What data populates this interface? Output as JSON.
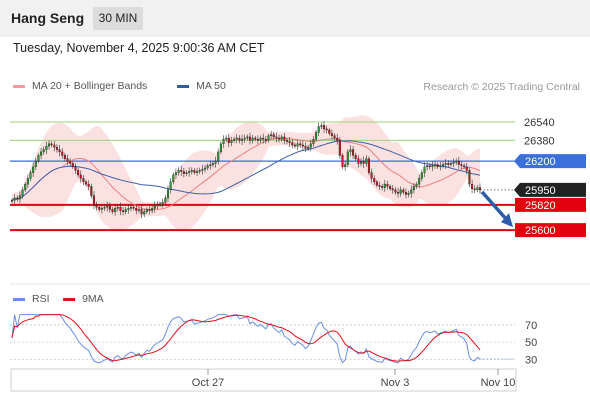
{
  "header": {
    "title": "Hang Seng",
    "interval": "30 MIN",
    "datetime": "Tuesday, November 4, 2025 9:00:36 AM CET"
  },
  "colors": {
    "candle_up": "#2ca02c",
    "candle_down": "#d9101a",
    "ma20": "#ef8080",
    "ma50": "#3f5fa8",
    "bollinger_fill": "#fbdada",
    "resistance": "#9cd47a",
    "pivot": "#3a6fdc",
    "support": "#e3000f",
    "price_label": "#222222",
    "rsi": "#6b8ee6",
    "rsi_ma": "#e0101a",
    "arrow": "#2f5ca8"
  },
  "chart_data": [
    {
      "type": "candlestick",
      "title": "",
      "legend": [
        {
          "name": "MA 20 + Bollinger Bands",
          "color": "#f19a9a"
        },
        {
          "name": "MA 50",
          "color": "#2e5fa5"
        }
      ],
      "legend_position": "top-left",
      "watermark": "Research © 2025 Trading Central",
      "ylim": [
        25150,
        26800
      ],
      "x_labels": [
        "Oct 27",
        "Nov 3",
        "Nov 10"
      ],
      "levels": [
        {
          "value": 26540,
          "label": "26540",
          "kind": "resistance"
        },
        {
          "value": 26380,
          "label": "26380",
          "kind": "resistance"
        },
        {
          "value": 26200,
          "label": "26200",
          "kind": "pivot"
        },
        {
          "value": 25950,
          "label": "25950",
          "kind": "current"
        },
        {
          "value": 25820,
          "label": "25820",
          "kind": "support"
        },
        {
          "value": 25600,
          "label": "25600",
          "kind": "support"
        }
      ],
      "forecast_arrow": {
        "from": 25950,
        "to": 25600
      },
      "closes": [
        25860,
        25880,
        25870,
        25900,
        25950,
        26000,
        26050,
        26100,
        26150,
        26200,
        26250,
        26280,
        26300,
        26330,
        26350,
        26340,
        26320,
        26300,
        26280,
        26250,
        26220,
        26200,
        26180,
        26150,
        26120,
        26080,
        26050,
        26020,
        26000,
        25980,
        25900,
        25820,
        25800,
        25780,
        25790,
        25800,
        25810,
        25780,
        25760,
        25790,
        25800,
        25770,
        25760,
        25780,
        25790,
        25800,
        25790,
        25770,
        25780,
        25740,
        25760,
        25780,
        25770,
        25790,
        25810,
        25820,
        25830,
        25840,
        25880,
        25950,
        26020,
        26080,
        26100,
        26120,
        26110,
        26090,
        26100,
        26110,
        26120,
        26100,
        26110,
        26120,
        26130,
        26140,
        26160,
        26170,
        26180,
        26200,
        26280,
        26350,
        26390,
        26400,
        26360,
        26380,
        26390,
        26400,
        26380,
        26390,
        26400,
        26410,
        26380,
        26400,
        26390,
        26380,
        26400,
        26390,
        26380,
        26420,
        26430,
        26410,
        26400,
        26390,
        26410,
        26380,
        26370,
        26360,
        26340,
        26330,
        26350,
        26340,
        26330,
        26310,
        26320,
        26350,
        26390,
        26450,
        26500,
        26510,
        26480,
        26470,
        26440,
        26420,
        26400,
        26380,
        26250,
        26150,
        26170,
        26280,
        26300,
        26250,
        26220,
        26180,
        26200,
        26180,
        26220,
        26100,
        26050,
        26020,
        25990,
        25980,
        25970,
        26000,
        25980,
        25960,
        25950,
        25930,
        25920,
        25950,
        25930,
        25910,
        25920,
        25950,
        25980,
        26000,
        26050,
        26100,
        26150,
        26160,
        26150,
        26160,
        26170,
        26150,
        26160,
        26170,
        26180,
        26170,
        26180,
        26190,
        26200,
        26170,
        26160,
        26150,
        26120,
        26000,
        25960,
        25950,
        25970,
        25950
      ]
    },
    {
      "type": "line",
      "title": "",
      "legend": [
        {
          "name": "RSI",
          "color": "#6b8ee6"
        },
        {
          "name": "9MA",
          "color": "#e0101a"
        }
      ],
      "legend_position": "top-left",
      "ylim": [
        20,
        85
      ],
      "y_ticks": [
        70,
        50,
        30
      ]
    }
  ]
}
